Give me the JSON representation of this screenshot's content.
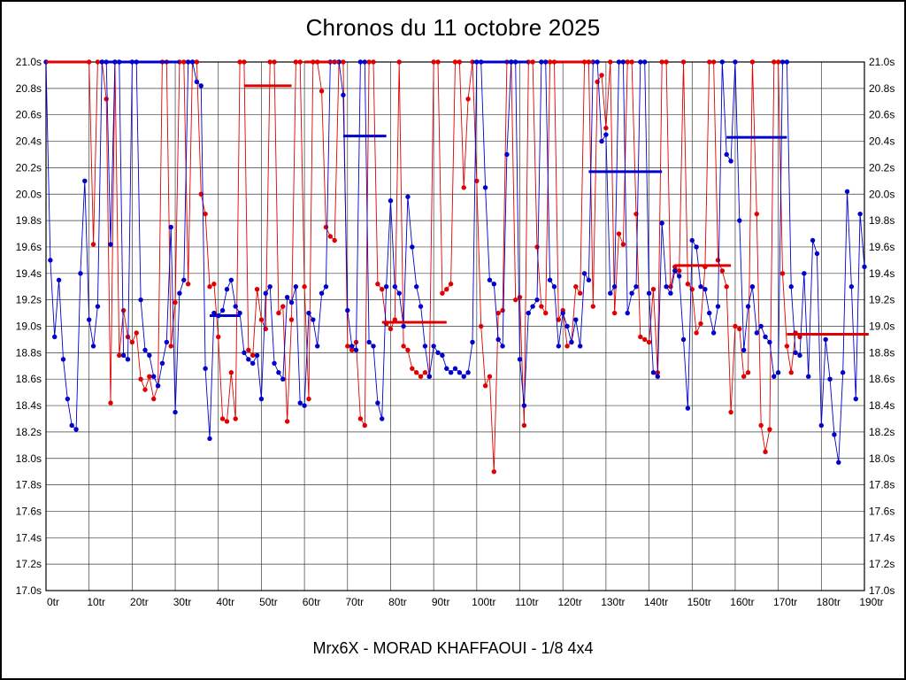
{
  "page": {
    "title": "Chronos du 11 octobre 2025",
    "subtitle": "Mrx6X - MORAD KHAFFAOUI - 1/8 4x4"
  },
  "chart_data": {
    "type": "line",
    "title": "Chronos du 11 octobre 2025",
    "subtitle": "Mrx6X - MORAD KHAFFAOUI - 1/8 4x4",
    "grid": true,
    "legend": "none",
    "x_axis": {
      "min": 0,
      "max": 190,
      "tick_step": 10,
      "tick_suffix": "tr"
    },
    "y_axis": {
      "min": 17.0,
      "max": 21.0,
      "tick_step": 0.2,
      "tick_suffix": "s",
      "labels_both_sides": true
    },
    "series": [
      {
        "name": "driver-red",
        "color": "#e00000",
        "start_lap": 10,
        "values": [
          21.0,
          19.62,
          21.0,
          21.0,
          20.72,
          18.42,
          21.0,
          18.78,
          19.12,
          18.92,
          18.88,
          18.95,
          18.6,
          18.52,
          18.62,
          18.45,
          18.55,
          21.0,
          21.0,
          18.85,
          19.18,
          21.0,
          21.0,
          19.32,
          21.0,
          21.0,
          20.0,
          19.85,
          19.3,
          19.32,
          18.92,
          18.3,
          18.28,
          18.65,
          18.3,
          21.0,
          21.0,
          18.82,
          18.78,
          19.28,
          19.05,
          18.98,
          21.0,
          21.0,
          19.1,
          19.15,
          18.28,
          19.05,
          21.0,
          21.0,
          19.3,
          18.45,
          21.0,
          21.0,
          20.78,
          19.75,
          19.68,
          19.65,
          21.0,
          21.0,
          18.85,
          18.82,
          18.88,
          18.3,
          18.25,
          21.0,
          21.0,
          19.32,
          19.28,
          19.02,
          18.98,
          19.05,
          21.0,
          18.85,
          18.82,
          18.68,
          18.65,
          18.62,
          18.65,
          18.62,
          21.0,
          21.0,
          19.25,
          19.28,
          19.32,
          21.0,
          21.0,
          20.05,
          20.72,
          21.0,
          20.1,
          19.0,
          18.55,
          18.62,
          17.9,
          19.1,
          19.12,
          21.0,
          21.0,
          19.2,
          19.22,
          18.25,
          21.0,
          21.0,
          19.6,
          19.15,
          19.1,
          21.0,
          21.0,
          19.05,
          19.12,
          18.85,
          18.88,
          19.3,
          19.25,
          21.0,
          21.0,
          19.15,
          20.85,
          20.9,
          20.5,
          21.0,
          19.1,
          19.7,
          19.62,
          21.0,
          21.0,
          19.85,
          18.92,
          18.9,
          18.88,
          19.28,
          18.65,
          21.0,
          21.0,
          19.3,
          19.45,
          19.42,
          21.0,
          19.32,
          19.28,
          18.95,
          19.02,
          19.45,
          21.0,
          21.0,
          19.5,
          19.42,
          19.3,
          18.35,
          19.0,
          18.98,
          18.62,
          18.65,
          21.0,
          19.85,
          18.25,
          18.05,
          18.22,
          21.0,
          21.0,
          19.4,
          18.85,
          18.65,
          18.95,
          18.92
        ]
      },
      {
        "name": "driver-blue",
        "color": "#0000cc",
        "start_lap": 0,
        "values": [
          21.0,
          19.5,
          18.92,
          19.35,
          18.75,
          18.45,
          18.25,
          18.22,
          19.4,
          20.1,
          19.05,
          18.85,
          19.15,
          21.0,
          21.0,
          19.62,
          21.0,
          21.0,
          18.78,
          18.75,
          21.0,
          21.0,
          19.2,
          18.82,
          18.78,
          18.62,
          18.55,
          18.72,
          18.88,
          19.75,
          18.35,
          19.25,
          19.35,
          21.0,
          21.0,
          20.85,
          20.82,
          18.68,
          18.15,
          19.1,
          19.08,
          19.12,
          19.28,
          19.35,
          19.15,
          19.1,
          18.8,
          18.75,
          18.72,
          18.78,
          18.45,
          19.25,
          19.3,
          18.72,
          18.65,
          18.6,
          19.22,
          19.18,
          19.3,
          18.42,
          18.4,
          19.1,
          19.05,
          18.85,
          19.25,
          19.3,
          21.0,
          21.0,
          21.0,
          20.75,
          19.12,
          18.85,
          18.82,
          21.0,
          21.0,
          18.88,
          18.85,
          18.42,
          18.3,
          19.3,
          19.95,
          19.3,
          19.25,
          19.0,
          19.98,
          19.6,
          19.3,
          19.15,
          18.85,
          18.62,
          18.85,
          18.8,
          18.78,
          18.68,
          18.65,
          18.68,
          18.65,
          18.62,
          18.65,
          18.88,
          21.0,
          21.0,
          20.05,
          19.35,
          19.32,
          18.9,
          18.85,
          20.3,
          21.0,
          21.0,
          18.75,
          18.4,
          19.1,
          19.15,
          19.2,
          21.0,
          21.0,
          19.35,
          19.3,
          18.85,
          19.1,
          19.0,
          18.88,
          19.05,
          18.85,
          19.4,
          19.35,
          21.0,
          21.0,
          20.4,
          20.45,
          19.25,
          19.3,
          21.0,
          21.0,
          19.1,
          19.25,
          19.3,
          21.0,
          21.0,
          19.25,
          18.65,
          18.62,
          19.78,
          19.3,
          19.25,
          19.42,
          19.38,
          18.9,
          18.38,
          19.65,
          19.6,
          19.3,
          19.28,
          19.1,
          18.95,
          19.15,
          21.0,
          20.3,
          20.25,
          21.0,
          19.8,
          18.82,
          19.15,
          19.3,
          18.95,
          19.0,
          18.92,
          18.88,
          18.62,
          18.65,
          21.0,
          21.0,
          19.3,
          18.8,
          18.78,
          19.4,
          18.62,
          19.65,
          19.55,
          18.25,
          18.9,
          18.6,
          18.18,
          17.97,
          18.65,
          20.02,
          19.3,
          18.45,
          19.85,
          19.45
        ]
      }
    ],
    "average_segments": [
      {
        "series_index": 0,
        "from": 0,
        "to": 10,
        "value": 21.0
      },
      {
        "series_index": 0,
        "from": 46,
        "to": 57,
        "value": 20.82
      },
      {
        "series_index": 0,
        "from": 60,
        "to": 68,
        "value": 21.0
      },
      {
        "series_index": 0,
        "from": 78,
        "to": 93,
        "value": 19.03
      },
      {
        "series_index": 0,
        "from": 117,
        "to": 127,
        "value": 21.0
      },
      {
        "series_index": 0,
        "from": 146,
        "to": 159,
        "value": 19.46
      },
      {
        "series_index": 0,
        "from": 172,
        "to": 191,
        "value": 18.94
      },
      {
        "series_index": 1,
        "from": 13,
        "to": 31,
        "value": 21.0
      },
      {
        "series_index": 1,
        "from": 38,
        "to": 45,
        "value": 19.08
      },
      {
        "series_index": 1,
        "from": 69,
        "to": 79,
        "value": 20.44
      },
      {
        "series_index": 1,
        "from": 99,
        "to": 112,
        "value": 21.0
      },
      {
        "series_index": 1,
        "from": 126,
        "to": 143,
        "value": 20.17
      },
      {
        "series_index": 1,
        "from": 158,
        "to": 172,
        "value": 20.43
      }
    ],
    "colors": {
      "grid": "#3c3c3c",
      "axis": "#000000",
      "background": "#ffffff"
    }
  }
}
